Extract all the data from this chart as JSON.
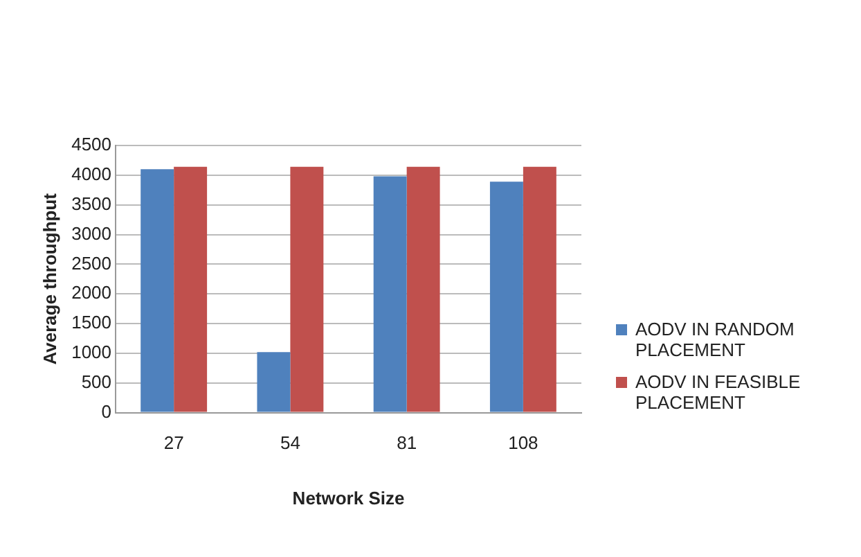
{
  "chart_data": {
    "type": "bar",
    "xlabel": "Network Size",
    "ylabel": "Average throughput",
    "categories": [
      "27",
      "54",
      "81",
      "108"
    ],
    "series": [
      {
        "name": "AODV IN RANDOM PLACEMENT",
        "color": "#4f81bd",
        "values": [
          4100,
          1020,
          3980,
          3890
        ]
      },
      {
        "name": "AODV IN FEASIBLE PLACEMENT",
        "color": "#c0504d",
        "values": [
          4140,
          4140,
          4140,
          4140
        ]
      }
    ],
    "ylim": [
      0,
      4500
    ],
    "yticks": [
      0,
      500,
      1000,
      1500,
      2000,
      2500,
      3000,
      3500,
      4000,
      4500
    ],
    "grid": "y",
    "legend": "right"
  }
}
